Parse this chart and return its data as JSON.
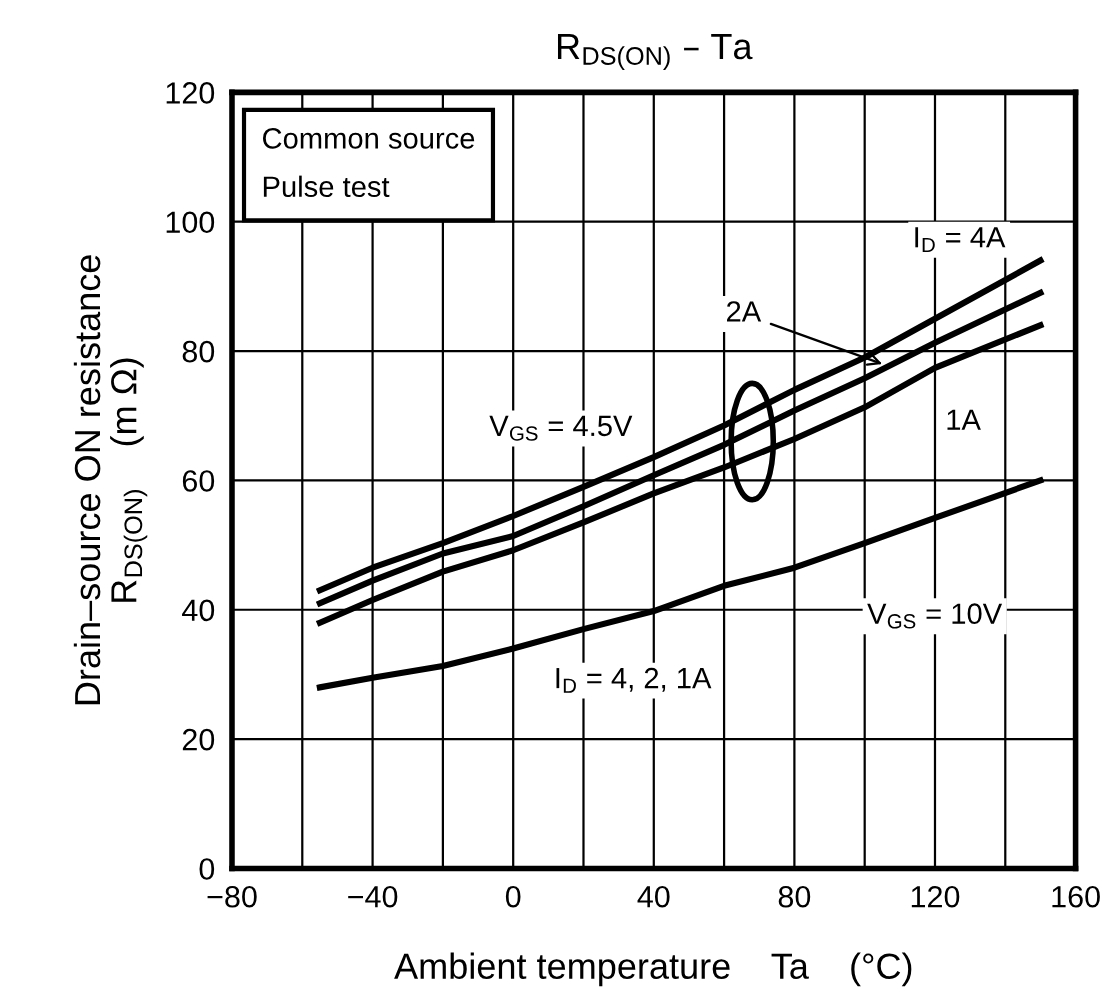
{
  "chart_data": {
    "type": "line",
    "title": "R$_{DS(ON)}$ – Ta",
    "xlabel": "Ambient temperature    Ta    (°C)",
    "ylabel": "Drain–source ON resistance\nR$_{DS(ON)}$    (m Ω)",
    "x": [
      -55,
      -40,
      -20,
      0,
      20,
      40,
      60,
      80,
      100,
      120,
      150
    ],
    "series": [
      {
        "color": "#000000",
        "values": [
          43,
          46.5,
          50.3,
          54.5,
          59,
          63.6,
          68.5,
          74,
          79,
          85,
          94
        ]
      },
      {
        "color": "#000000",
        "values": [
          41,
          44.5,
          48.7,
          51.4,
          56,
          60.8,
          65.5,
          70.8,
          75.8,
          81.3,
          89
        ]
      },
      {
        "color": "#000000",
        "values": [
          38,
          41.5,
          45.9,
          49.2,
          53.5,
          58,
          62,
          66.4,
          71.3,
          77.4,
          84
        ]
      },
      {
        "color": "#000000",
        "values": [
          28,
          29.5,
          31.3,
          34,
          37,
          39.8,
          43.7,
          46.5,
          50.3,
          54.2,
          60
        ]
      }
    ],
    "annotations": [
      "Common source\nPulse test",
      "I$_{D}$ = 4A",
      {
        "text": "2A",
        "x": 105,
        "y": 78
      },
      {
        "text": "1A",
        "x": 128,
        "y": 69
      },
      "V$_{GS}$ = 4.5V",
      "V$_{GS}$ = 10V",
      "I$_{D}$ = 4, 2, 1A"
    ],
    "xlim": [
      -80,
      160
    ],
    "ylim": [
      0,
      120
    ],
    "xticks": [
      {
        "value": -80,
        "label": "−80"
      },
      {
        "value": -40,
        "label": "−40"
      },
      0,
      40,
      80,
      120,
      160
    ],
    "yticks": [
      0,
      20,
      40,
      60,
      80,
      100,
      120
    ],
    "grid": true,
    "marker": "none",
    "line_style": "solid"
  }
}
